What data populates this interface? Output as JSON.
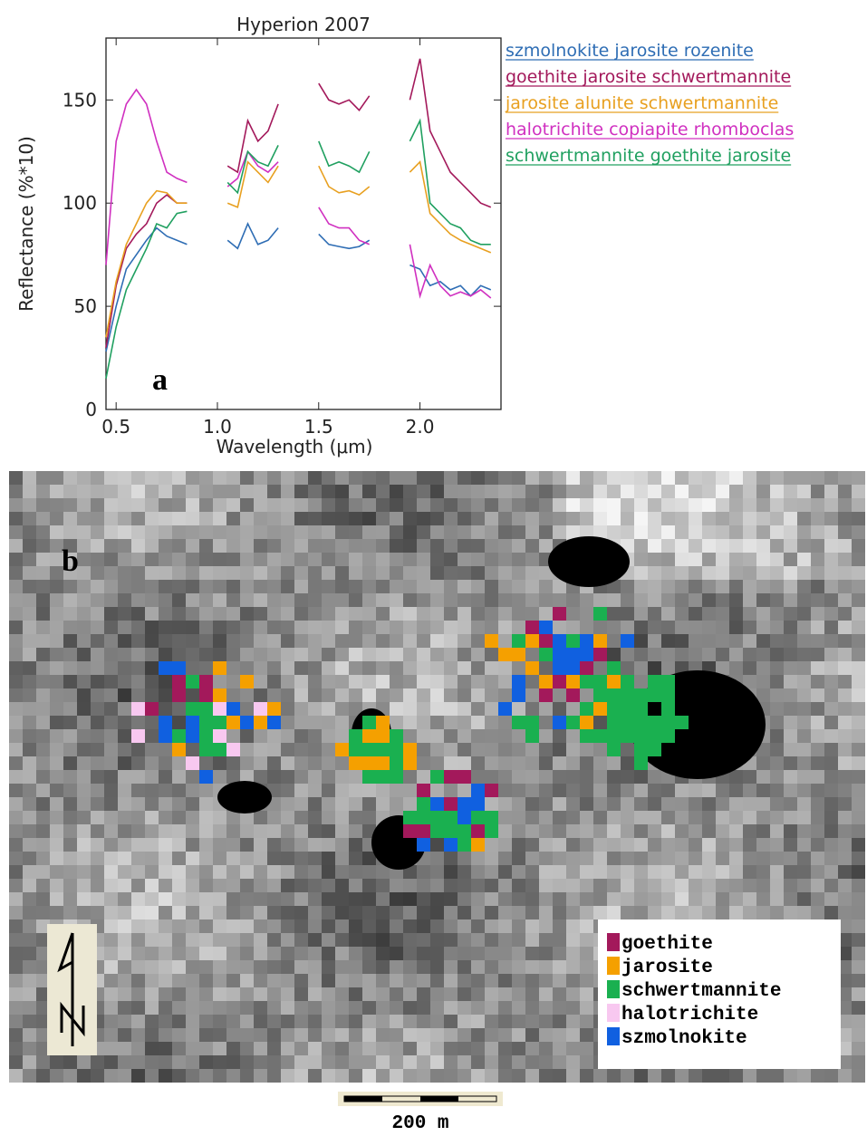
{
  "chart_data": {
    "type": "line",
    "title": "Hyperion 2007",
    "x_label": "Wavelength (μm)",
    "y_label": "Reflectance (%*10)",
    "annotation": "a",
    "x": [
      0.45,
      0.5,
      0.55,
      0.6,
      0.65,
      0.7,
      0.75,
      0.8,
      0.85,
      0.95,
      1.05,
      1.1,
      1.15,
      1.2,
      1.25,
      1.3,
      1.4,
      1.5,
      1.55,
      1.6,
      1.65,
      1.7,
      1.75,
      1.85,
      1.95,
      2.0,
      2.05,
      2.1,
      2.15,
      2.2,
      2.25,
      2.3,
      2.35
    ],
    "xlim": [
      0.45,
      2.4
    ],
    "xticks": [
      0.5,
      {
        "value": 1,
        "label": "1.0"
      },
      1.5,
      {
        "value": 2,
        "label": "2.0"
      }
    ],
    "ylim": [
      0,
      180
    ],
    "yticks": [
      0,
      50,
      100,
      150
    ],
    "series": [
      {
        "name": "szmolnokite jarosite rozenite",
        "color": "#2e6db4",
        "values": [
          28,
          50,
          68,
          75,
          82,
          88,
          84,
          82,
          80,
          null,
          82,
          78,
          90,
          80,
          82,
          88,
          null,
          85,
          80,
          79,
          78,
          79,
          82,
          null,
          70,
          68,
          60,
          62,
          58,
          60,
          55,
          60,
          58
        ]
      },
      {
        "name": "goethite jarosite schwertmannite",
        "color": "#a3195b",
        "values": [
          30,
          60,
          78,
          85,
          90,
          100,
          104,
          100,
          100,
          null,
          118,
          115,
          140,
          130,
          135,
          148,
          null,
          158,
          150,
          148,
          150,
          145,
          152,
          null,
          150,
          170,
          135,
          125,
          115,
          110,
          105,
          100,
          98
        ]
      },
      {
        "name": "jarosite alunite schwertmannite",
        "color": "#e8a020",
        "values": [
          35,
          62,
          80,
          90,
          100,
          106,
          105,
          100,
          100,
          null,
          100,
          98,
          120,
          115,
          110,
          118,
          null,
          118,
          108,
          105,
          106,
          104,
          108,
          null,
          115,
          120,
          95,
          90,
          85,
          82,
          80,
          78,
          76
        ]
      },
      {
        "name": "halotrichite copiapite rhomboclas",
        "color": "#d030c0",
        "values": [
          70,
          130,
          148,
          155,
          148,
          130,
          115,
          112,
          110,
          null,
          108,
          112,
          125,
          118,
          115,
          120,
          null,
          98,
          90,
          88,
          88,
          82,
          80,
          null,
          80,
          55,
          70,
          60,
          55,
          57,
          55,
          58,
          54
        ]
      },
      {
        "name": "schwertmannite goethite jarosite",
        "color": "#20a060",
        "values": [
          15,
          40,
          58,
          68,
          78,
          90,
          88,
          95,
          96,
          null,
          110,
          105,
          125,
          120,
          118,
          128,
          null,
          130,
          118,
          120,
          118,
          115,
          125,
          null,
          130,
          140,
          100,
          95,
          90,
          88,
          82,
          80,
          80
        ]
      }
    ]
  },
  "map": {
    "panel_label": "b",
    "scale_label": "200 m",
    "legend": [
      {
        "name": "goethite",
        "color": "#a3195b"
      },
      {
        "name": "jarosite",
        "color": "#f5a000"
      },
      {
        "name": "schwertmannite",
        "color": "#1ab050"
      },
      {
        "name": "halotrichite",
        "color": "#f8c8f0"
      },
      {
        "name": "szmolnokite",
        "color": "#1060e0"
      }
    ]
  }
}
